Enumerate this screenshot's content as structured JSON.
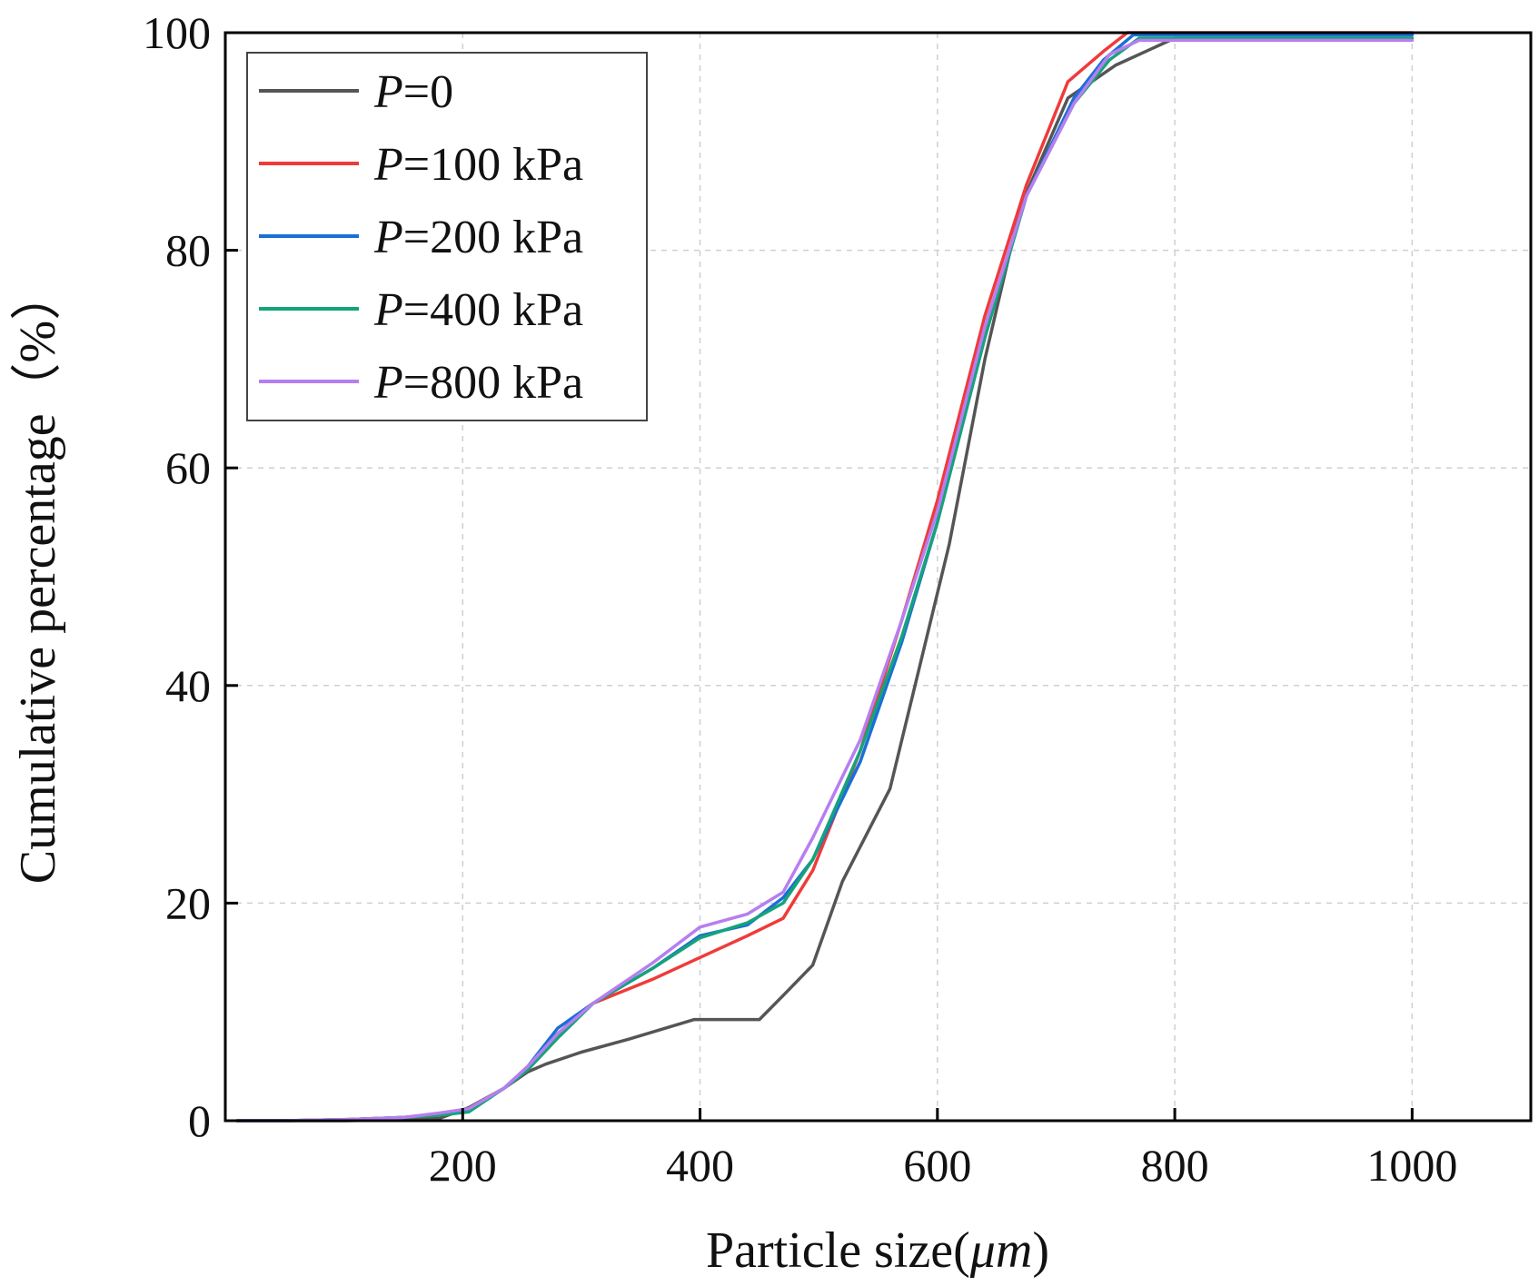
{
  "chart_data": {
    "type": "line",
    "title": "",
    "xlabel": "Particle size(",
    "xlabel_unit": "μm",
    "xlabel_close": ")",
    "ylabel": "Cumulative percentage（%）",
    "xlim": [
      0,
      1100
    ],
    "ylim": [
      0,
      100
    ],
    "xticks": [
      200,
      400,
      600,
      800,
      1000
    ],
    "yticks": [
      0,
      20,
      40,
      60,
      80,
      100
    ],
    "grid": true,
    "legend_position": "top-left",
    "series": [
      {
        "name": "P=0",
        "label_italic": "P",
        "label_rest": "=0",
        "color": "#555555",
        "x": [
          10,
          50,
          100,
          150,
          180,
          205,
          235,
          255,
          270,
          300,
          340,
          395,
          450,
          470,
          495,
          520,
          560,
          590,
          610,
          640,
          670,
          710,
          750,
          800,
          1000
        ],
        "y": [
          0,
          0,
          0,
          0.1,
          0.2,
          1.2,
          3.0,
          4.5,
          5.2,
          6.3,
          7.5,
          9.3,
          9.3,
          11.5,
          14.3,
          22.0,
          30.5,
          44.0,
          53.0,
          70.0,
          84.0,
          94.0,
          97.0,
          99.5,
          99.5
        ]
      },
      {
        "name": "P=100 kPa",
        "label_italic": "P",
        "label_rest": "=100 kPa",
        "color": "#f03a3a",
        "x": [
          10,
          50,
          100,
          150,
          180,
          205,
          235,
          255,
          280,
          310,
          360,
          400,
          440,
          470,
          495,
          535,
          570,
          600,
          640,
          675,
          710,
          740,
          760,
          800,
          1000
        ],
        "y": [
          0,
          0,
          0.1,
          0.3,
          0.5,
          1.0,
          3.0,
          4.8,
          8.0,
          10.8,
          13.0,
          15.0,
          17.0,
          18.6,
          23.0,
          34.0,
          46.0,
          57.0,
          74.0,
          86.0,
          95.5,
          98.3,
          100,
          100,
          100
        ]
      },
      {
        "name": "P=200 kPa",
        "label_italic": "P",
        "label_rest": "=200 kPa",
        "color": "#1a6fd6",
        "x": [
          10,
          50,
          100,
          150,
          180,
          205,
          235,
          255,
          280,
          310,
          360,
          400,
          440,
          470,
          495,
          535,
          570,
          600,
          640,
          675,
          715,
          740,
          765,
          800,
          1000
        ],
        "y": [
          0,
          0,
          0.1,
          0.3,
          0.6,
          1.0,
          3.0,
          5.0,
          8.5,
          10.8,
          14.0,
          17.0,
          18.0,
          20.5,
          24.0,
          33.0,
          44.0,
          55.0,
          72.0,
          85.0,
          94.0,
          97.5,
          99.8,
          99.8,
          99.8
        ]
      },
      {
        "name": "P=400 kPa",
        "label_italic": "P",
        "label_rest": "=400 kPa",
        "color": "#16a37a",
        "x": [
          10,
          50,
          100,
          150,
          180,
          205,
          235,
          255,
          280,
          310,
          360,
          400,
          440,
          470,
          495,
          535,
          570,
          600,
          640,
          675,
          715,
          745,
          770,
          800,
          1000
        ],
        "y": [
          0,
          0,
          0.1,
          0.3,
          0.5,
          0.8,
          3.0,
          4.7,
          7.6,
          10.8,
          14.0,
          16.8,
          18.2,
          20.0,
          24.0,
          34.0,
          44.5,
          55.0,
          72.0,
          85.0,
          93.5,
          97.5,
          99.5,
          99.5,
          99.5
        ]
      },
      {
        "name": "P=800 kPa",
        "label_italic": "P",
        "label_rest": "=800 kPa",
        "color": "#b77ef0",
        "x": [
          10,
          50,
          100,
          150,
          180,
          205,
          235,
          255,
          280,
          310,
          360,
          400,
          440,
          470,
          495,
          535,
          570,
          600,
          640,
          675,
          715,
          745,
          770,
          800,
          1000
        ],
        "y": [
          0,
          0,
          0.1,
          0.3,
          0.7,
          1.1,
          3.0,
          5.0,
          8.0,
          10.8,
          14.5,
          17.8,
          19.0,
          21.0,
          26.0,
          35.0,
          46.0,
          56.0,
          73.0,
          85.0,
          93.5,
          98.0,
          99.3,
          99.3,
          99.3
        ]
      }
    ]
  }
}
